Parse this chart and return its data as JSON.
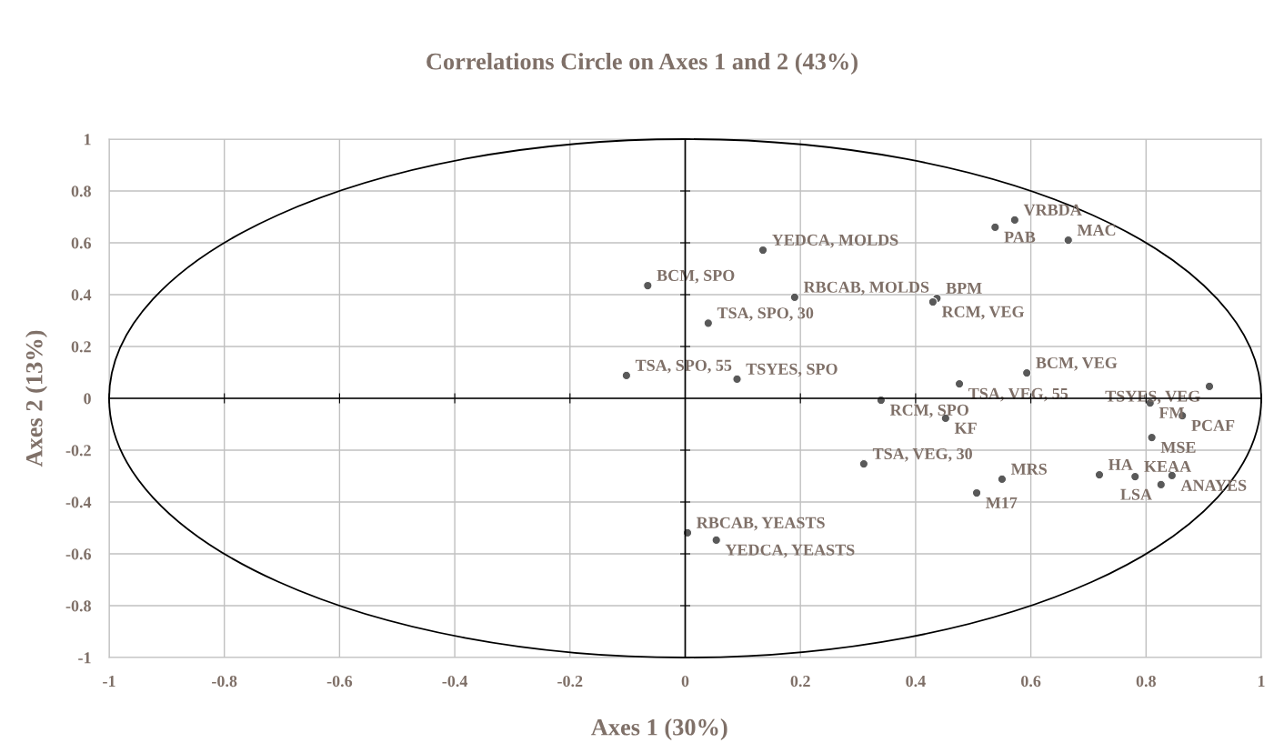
{
  "chart_data": {
    "type": "scatter",
    "title": "Correlations Circle on Axes 1 and 2 (43%)",
    "xlabel": "Axes 1 (30%)",
    "ylabel": "Axes 2 (13%)",
    "xlim": [
      -1,
      1
    ],
    "ylim": [
      -1,
      1
    ],
    "xticks": [
      -1,
      -0.8,
      -0.6,
      -0.4,
      -0.2,
      0,
      0.2,
      0.4,
      0.6,
      0.8,
      1
    ],
    "yticks": [
      -1,
      -0.8,
      -0.6,
      -0.4,
      -0.2,
      0,
      0.2,
      0.4,
      0.6,
      0.8,
      1
    ],
    "grid": true,
    "marker": "circle",
    "series": [
      {
        "color": "#595959",
        "x": [
          0.135,
          0.572,
          0.538,
          0.665,
          -0.065,
          0.19,
          0.437,
          0.43,
          0.04,
          -0.102,
          0.09,
          0.593,
          0.476,
          0.91,
          0.34,
          0.807,
          0.863,
          0.452,
          0.81,
          0.31,
          0.719,
          0.781,
          0.845,
          0.55,
          0.826,
          0.506,
          0.004,
          0.054
        ],
        "values": [
          0.572,
          0.688,
          0.66,
          0.61,
          0.435,
          0.39,
          0.386,
          0.372,
          0.29,
          0.088,
          0.074,
          0.098,
          0.056,
          0.046,
          -0.007,
          -0.018,
          -0.067,
          -0.077,
          -0.151,
          -0.253,
          -0.295,
          -0.302,
          -0.298,
          -0.312,
          -0.333,
          -0.365,
          -0.519,
          -0.547
        ]
      }
    ],
    "annotations": [
      {
        "text": "YEDCA, MOLDS",
        "x": 0.135,
        "y": 0.572
      },
      {
        "text": "VRBDA",
        "x": 0.572,
        "y": 0.688
      },
      {
        "text": "PAB",
        "x": 0.538,
        "y": 0.66
      },
      {
        "text": "MAC",
        "x": 0.665,
        "y": 0.61
      },
      {
        "text": "BCM, SPO",
        "x": -0.065,
        "y": 0.435
      },
      {
        "text": "RBCAB, MOLDS",
        "x": 0.19,
        "y": 0.39
      },
      {
        "text": "BPM",
        "x": 0.437,
        "y": 0.386
      },
      {
        "text": "RCM, VEG",
        "x": 0.43,
        "y": 0.372
      },
      {
        "text": "TSA, SPO, 30",
        "x": 0.04,
        "y": 0.29
      },
      {
        "text": "TSA, SPO, 55",
        "x": -0.102,
        "y": 0.088
      },
      {
        "text": "TSYES, SPO",
        "x": 0.09,
        "y": 0.074
      },
      {
        "text": "BCM, VEG",
        "x": 0.593,
        "y": 0.098
      },
      {
        "text": "TSA, VEG, 55",
        "x": 0.476,
        "y": 0.056
      },
      {
        "text": "TSYES, VEG",
        "x": 0.91,
        "y": 0.046
      },
      {
        "text": "RCM, SPO",
        "x": 0.34,
        "y": -0.007
      },
      {
        "text": "FM",
        "x": 0.807,
        "y": -0.018
      },
      {
        "text": "PCAF",
        "x": 0.863,
        "y": -0.067
      },
      {
        "text": "KF",
        "x": 0.452,
        "y": -0.077
      },
      {
        "text": "MSE",
        "x": 0.81,
        "y": -0.151
      },
      {
        "text": "TSA, VEG, 30",
        "x": 0.31,
        "y": -0.253
      },
      {
        "text": "HA",
        "x": 0.719,
        "y": -0.295
      },
      {
        "text": "KEAA",
        "x": 0.781,
        "y": -0.302
      },
      {
        "text": "ANAYES",
        "x": 0.845,
        "y": -0.298
      },
      {
        "text": "MRS",
        "x": 0.55,
        "y": -0.312
      },
      {
        "text": "LSA",
        "x": 0.826,
        "y": -0.333
      },
      {
        "text": "M17",
        "x": 0.506,
        "y": -0.365
      },
      {
        "text": "RBCAB, YEASTS",
        "x": 0.004,
        "y": -0.519
      },
      {
        "text": "YEDCA, YEASTS",
        "x": 0.054,
        "y": -0.547
      }
    ]
  }
}
